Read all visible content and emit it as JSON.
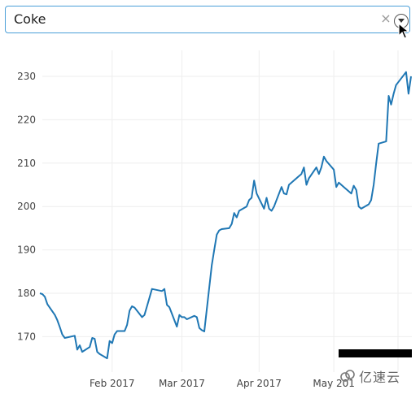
{
  "dropdown": {
    "value": "Coke",
    "clear_icon": "×",
    "arrow_icon": "chevron-down-icon"
  },
  "chart_data": {
    "type": "line",
    "title": "",
    "xlabel": "",
    "ylabel": "",
    "ylim": [
      164,
      233
    ],
    "y_ticks": [
      170,
      180,
      190,
      200,
      210,
      220,
      230
    ],
    "x_range": [
      "2017-01-03",
      "2017-06-01"
    ],
    "x_ticks": [
      {
        "date": "2017-02-01",
        "label": "Feb 2017"
      },
      {
        "date": "2017-03-01",
        "label": "Mar 2017"
      },
      {
        "date": "2017-04-01",
        "label": "Apr 2017"
      },
      {
        "date": "2017-05-01",
        "label": "May 201"
      }
    ],
    "grid": true,
    "line_color": "#1f77b4",
    "series": [
      {
        "x": [
          "2017-01-03",
          "2017-01-04",
          "2017-01-05",
          "2017-01-06",
          "2017-01-09",
          "2017-01-10",
          "2017-01-11",
          "2017-01-12",
          "2017-01-13",
          "2017-01-17",
          "2017-01-18",
          "2017-01-19",
          "2017-01-20",
          "2017-01-23",
          "2017-01-24",
          "2017-01-25",
          "2017-01-26",
          "2017-01-27",
          "2017-01-30",
          "2017-01-31",
          "2017-02-01",
          "2017-02-02",
          "2017-02-03",
          "2017-02-06",
          "2017-02-07",
          "2017-02-08",
          "2017-02-09",
          "2017-02-10",
          "2017-02-13",
          "2017-02-14",
          "2017-02-15",
          "2017-02-16",
          "2017-02-17",
          "2017-02-21",
          "2017-02-22",
          "2017-02-23",
          "2017-02-24",
          "2017-02-27",
          "2017-02-28",
          "2017-03-01",
          "2017-03-02",
          "2017-03-03",
          "2017-03-06",
          "2017-03-07",
          "2017-03-08",
          "2017-03-09",
          "2017-03-10",
          "2017-03-13",
          "2017-03-14",
          "2017-03-15",
          "2017-03-16",
          "2017-03-17",
          "2017-03-20",
          "2017-03-21",
          "2017-03-22",
          "2017-03-23",
          "2017-03-24",
          "2017-03-27",
          "2017-03-28",
          "2017-03-29",
          "2017-03-30",
          "2017-03-31",
          "2017-04-03",
          "2017-04-04",
          "2017-04-05",
          "2017-04-06",
          "2017-04-07",
          "2017-04-10",
          "2017-04-11",
          "2017-04-12",
          "2017-04-13",
          "2017-04-17",
          "2017-04-18",
          "2017-04-19",
          "2017-04-20",
          "2017-04-21",
          "2017-04-24",
          "2017-04-25",
          "2017-04-26",
          "2017-04-27",
          "2017-04-28",
          "2017-05-01",
          "2017-05-02",
          "2017-05-03",
          "2017-05-04",
          "2017-05-05",
          "2017-05-08",
          "2017-05-09",
          "2017-05-10",
          "2017-05-11",
          "2017-05-12",
          "2017-05-15",
          "2017-05-16",
          "2017-05-17",
          "2017-05-18",
          "2017-05-19",
          "2017-05-22",
          "2017-05-23",
          "2017-05-24",
          "2017-05-25",
          "2017-05-26",
          "2017-05-30",
          "2017-05-31",
          "2017-06-01"
        ],
        "y": [
          180.0,
          179.8,
          179.2,
          177.5,
          175.0,
          173.8,
          172.2,
          170.5,
          169.7,
          170.2,
          167.0,
          168.0,
          166.5,
          167.6,
          169.7,
          169.5,
          166.5,
          166.0,
          165.0,
          169.0,
          168.5,
          170.5,
          171.3,
          171.3,
          172.7,
          176.0,
          177.0,
          176.7,
          174.5,
          175.0,
          177.0,
          179.0,
          181.0,
          180.5,
          181.0,
          177.3,
          176.8,
          172.3,
          175.0,
          174.5,
          174.5,
          174.0,
          174.8,
          174.5,
          172.0,
          171.5,
          171.2,
          186.5,
          190.0,
          193.5,
          194.5,
          194.8,
          195.0,
          196.0,
          198.5,
          197.5,
          199.0,
          200.0,
          201.5,
          202.0,
          206.0,
          203.0,
          199.5,
          202.0,
          199.5,
          199.0,
          200.0,
          204.5,
          203.0,
          202.8,
          205.0,
          207.0,
          207.5,
          209.0,
          205.0,
          206.5,
          209.0,
          207.5,
          209.0,
          211.5,
          210.5,
          208.5,
          204.5,
          205.5,
          205.0,
          204.5,
          203.0,
          204.8,
          203.8,
          200.0,
          199.5,
          200.5,
          201.5,
          205.0,
          210.0,
          214.5,
          215.0,
          225.5,
          223.5,
          226.0,
          228.0,
          231.0,
          226.0,
          230.0
        ]
      }
    ]
  },
  "watermark": {
    "text": "亿速云"
  }
}
